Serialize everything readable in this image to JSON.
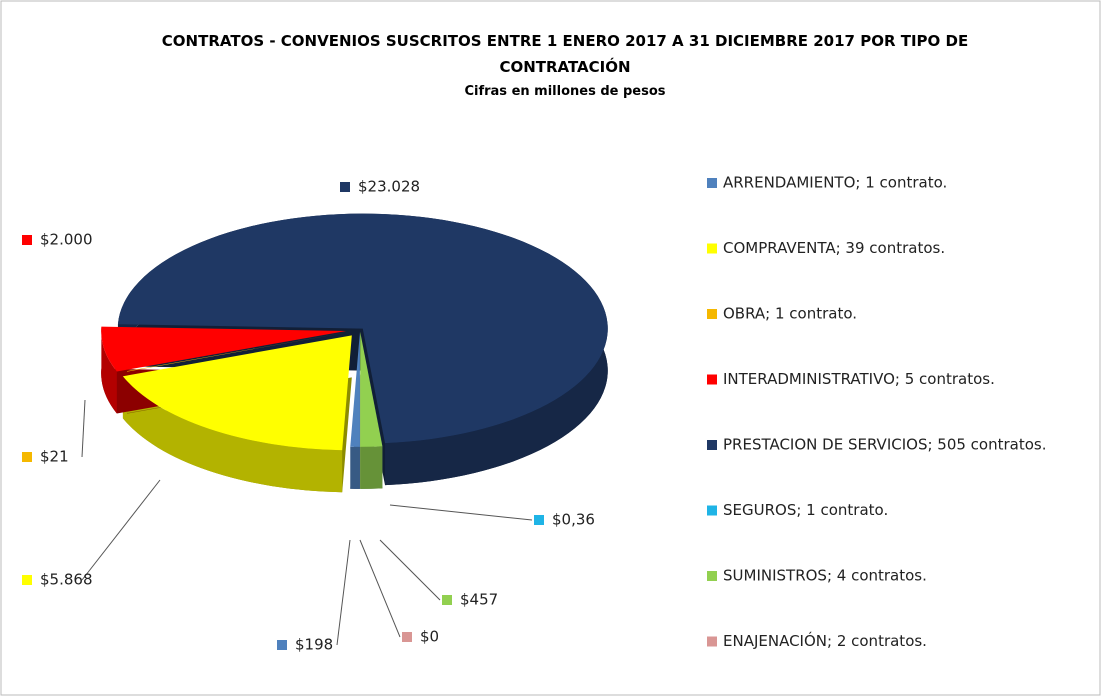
{
  "chart_data": {
    "type": "pie",
    "title": "CONTRATOS - CONVENIOS SUSCRITOS ENTRE 1 ENERO 2017 A 31 DICIEMBRE 2017 POR TIPO DE CONTRATACIÓN",
    "subtitle": "Cifras en millones de pesos",
    "categories": [
      "ARRENDAMIENTO; 1 contrato.",
      "COMPRAVENTA; 39 contratos.",
      "OBRA; 1 contrato.",
      "INTERADMINISTRATIVO; 5 contratos.",
      "PRESTACION DE SERVICIOS; 505 contratos.",
      "SEGUROS; 1 contrato.",
      "SUMINISTROS; 4 contratos.",
      "ENAJENACIÓN; 2 contratos."
    ],
    "values": [
      198,
      5868,
      21,
      2000,
      23028,
      0.36,
      457,
      0
    ],
    "value_labels": [
      "$198",
      "$5.868",
      "$21",
      "$2.000",
      "$23.028",
      "$0,36",
      "$457",
      "$0"
    ],
    "colors": [
      "#4f81bd",
      "#ffff00",
      "#f5b800",
      "#ff0000",
      "#1f3864",
      "#1fb4e6",
      "#92d050",
      "#d99694"
    ],
    "legend": "right"
  }
}
